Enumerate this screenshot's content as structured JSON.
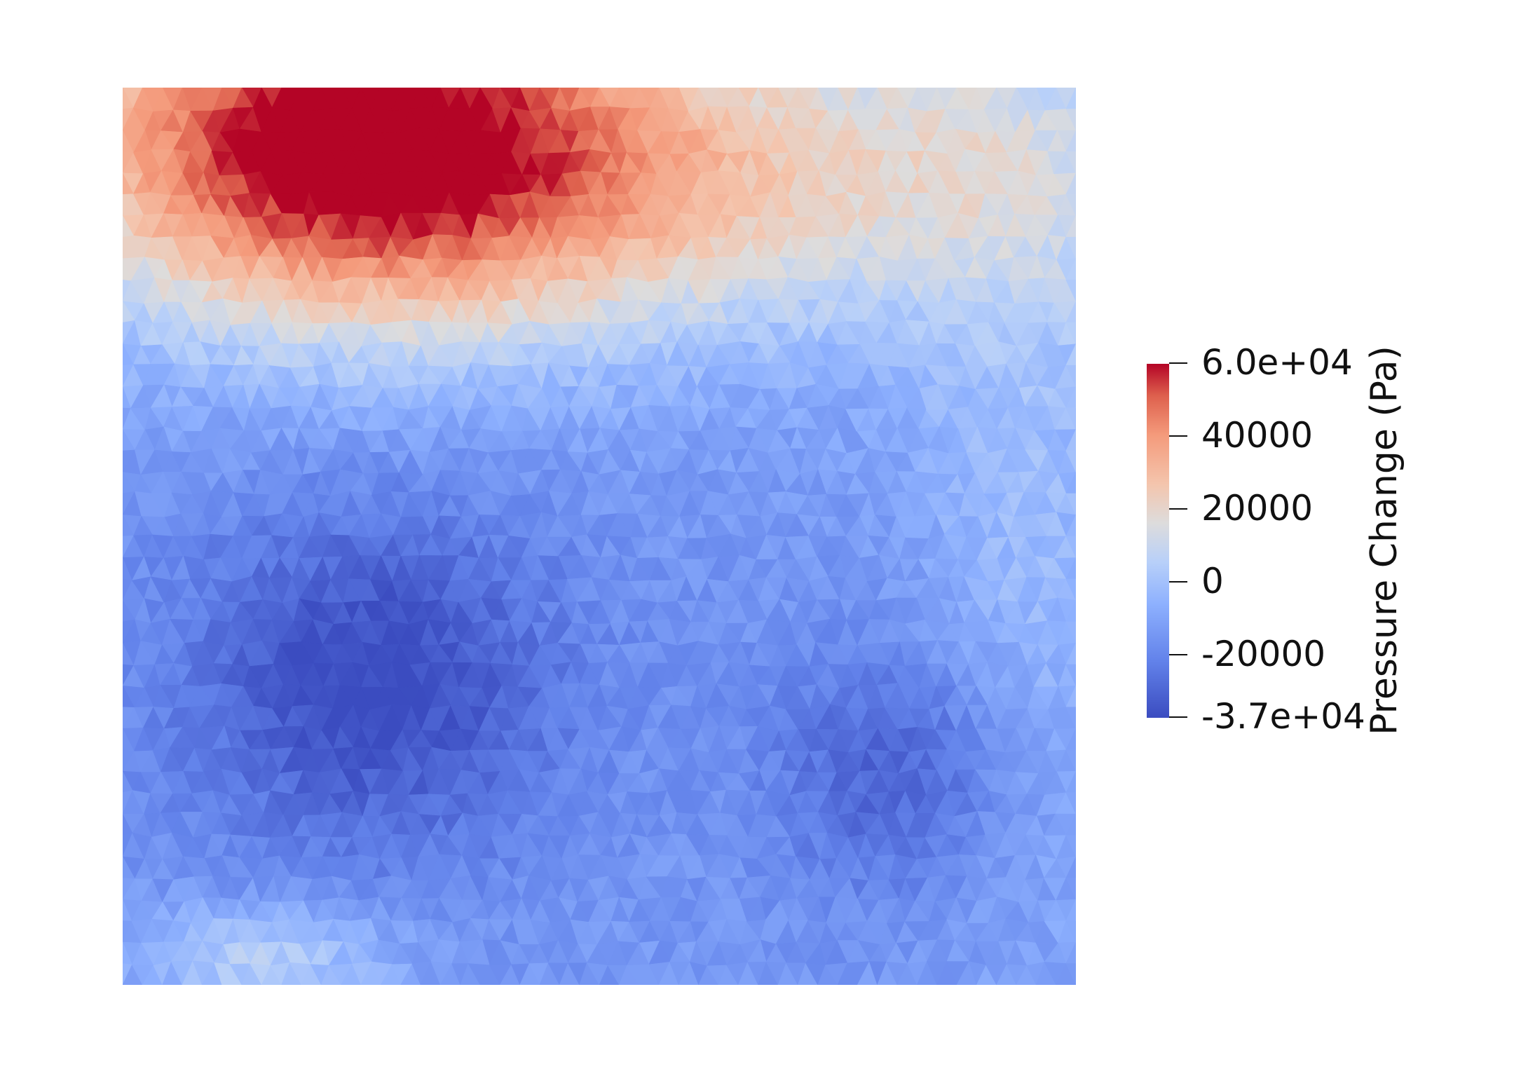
{
  "chart_data": {
    "type": "heatmap",
    "title": "",
    "xlabel": "",
    "ylabel": "",
    "grid": false,
    "mesh": "triangulated",
    "colormap": "coolwarm",
    "colorbar": {
      "title": "Pressure Change (Pa)",
      "range": [
        -37000,
        60000
      ],
      "ticks": [
        {
          "value": 60000,
          "label": "6.0e+04"
        },
        {
          "value": 40000,
          "label": "40000"
        },
        {
          "value": 20000,
          "label": "20000"
        },
        {
          "value": 0,
          "label": "0"
        },
        {
          "value": -20000,
          "label": "-20000"
        },
        {
          "value": -37000,
          "label": "-3.7e+04"
        }
      ]
    },
    "field_features": [
      {
        "region": "upper-left",
        "kind": "maximum",
        "value": 60000
      },
      {
        "region": "lower-left-center",
        "kind": "minimum",
        "value": -37000
      },
      {
        "region": "lower-right",
        "kind": "minimum",
        "value": -30000
      },
      {
        "region": "upper-right",
        "kind": "background",
        "value": 12000
      },
      {
        "region": "bottom-left",
        "kind": "local-rise",
        "value": 10000
      }
    ],
    "colors": {
      "min": "#3b4cc0",
      "mid": "#dddcdc",
      "max": "#b40426"
    }
  }
}
